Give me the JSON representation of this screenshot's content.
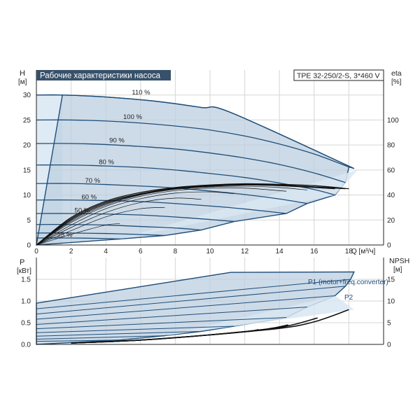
{
  "chart_data": [
    {
      "type": "line",
      "title": "Рабочие характеристики насоса",
      "model_label": "TPE 32-250/2-S, 3*460 V",
      "ylabel": "H",
      "yunit": "[м]",
      "y2label": "eta",
      "y2unit": "[%]",
      "xlabel": "Q [м³/ч]",
      "xlim": [
        0,
        20
      ],
      "ylim": [
        0,
        35
      ],
      "y2lim": [
        0,
        140
      ],
      "x_ticks": [
        0,
        2,
        4,
        6,
        8,
        10,
        12,
        14,
        16,
        18
      ],
      "y_ticks": [
        0,
        5,
        10,
        15,
        20,
        25,
        30
      ],
      "y2_ticks": [
        0,
        20,
        40,
        60,
        80,
        100
      ],
      "grid": true,
      "series": [
        {
          "name": "110 %",
          "x": [
            0,
            1.5,
            4,
            7,
            9.5,
            11.2,
            18.3
          ],
          "y": [
            30,
            30,
            29.6,
            28.7,
            27.5,
            26.5,
            15.3
          ]
        },
        {
          "name": "100 %",
          "x": [
            0,
            2,
            4,
            6,
            8,
            10,
            12,
            14,
            16,
            18
          ],
          "y": [
            25,
            25,
            24.8,
            24.4,
            23.8,
            23,
            21.8,
            20.2,
            18.2,
            15.6
          ]
        },
        {
          "name": "90 %",
          "x": [
            0,
            2,
            4,
            6,
            8,
            10,
            12,
            14,
            16,
            17.8
          ],
          "y": [
            20.3,
            20.3,
            20.1,
            19.7,
            19.2,
            18.4,
            17.4,
            16.1,
            14.4,
            12.5
          ]
        },
        {
          "name": "80 %",
          "x": [
            0,
            2,
            4,
            6,
            8,
            10,
            12,
            14,
            16,
            17.2
          ],
          "y": [
            16,
            16,
            15.8,
            15.5,
            15,
            14.3,
            13.5,
            12.4,
            11.1,
            10
          ]
        },
        {
          "name": "70 %",
          "x": [
            0,
            2,
            4,
            6,
            8,
            10,
            12,
            14,
            15.6
          ],
          "y": [
            12.3,
            12.3,
            12.1,
            11.8,
            11.4,
            10.8,
            10.1,
            9.2,
            8.3
          ]
        },
        {
          "name": "60 %",
          "x": [
            0,
            2,
            4,
            6,
            8,
            10,
            12,
            14.4
          ],
          "y": [
            9,
            9,
            8.9,
            8.7,
            8.3,
            7.8,
            7.2,
            6.3
          ]
        },
        {
          "name": "50 %",
          "x": [
            0,
            2,
            4,
            6,
            8,
            10,
            11.4
          ],
          "y": [
            6.3,
            6.3,
            6.2,
            6,
            5.6,
            5.1,
            4.7
          ]
        },
        {
          "name": "",
          "x": [
            0,
            2,
            4,
            6,
            8,
            9.5
          ],
          "y": [
            4.1,
            4.1,
            4,
            3.7,
            3.4,
            3
          ]
        },
        {
          "name": "",
          "x": [
            0,
            2,
            4,
            6,
            7.4
          ],
          "y": [
            2.4,
            2.4,
            2.3,
            2.1,
            1.9
          ]
        },
        {
          "name": "25 %",
          "x": [
            0,
            2,
            4,
            4.8
          ],
          "y": [
            1.4,
            1.4,
            1.3,
            1.2
          ]
        }
      ],
      "efficiency_series": [
        {
          "x": [
            0,
            2,
            4,
            6,
            8,
            10,
            12,
            14,
            16,
            18
          ],
          "y": [
            0,
            22,
            35,
            42,
            46,
            48,
            49,
            48.5,
            47.5,
            45
          ]
        },
        {
          "x": [
            0,
            2,
            4,
            6,
            8,
            10,
            12,
            14,
            16,
            17.8
          ],
          "y": [
            0,
            21,
            34,
            41,
            45.5,
            47.5,
            48.5,
            48,
            46.5,
            45
          ]
        },
        {
          "x": [
            0,
            2,
            4,
            6,
            8,
            10,
            12,
            14,
            16,
            17.2
          ],
          "y": [
            0,
            20,
            33,
            40.5,
            45,
            47,
            48,
            47.5,
            46,
            45
          ]
        },
        {
          "x": [
            0,
            2,
            4,
            6,
            8,
            10,
            12,
            14,
            15.6
          ],
          "y": [
            0,
            19,
            32,
            40,
            44.5,
            46.5,
            47,
            46,
            44
          ]
        },
        {
          "x": [
            0,
            2,
            4,
            6,
            8,
            10,
            12,
            14.4
          ],
          "y": [
            0,
            18,
            31,
            39,
            43.5,
            45.5,
            45.5,
            43
          ]
        },
        {
          "x": [
            0,
            2,
            4,
            6,
            8,
            10,
            11.4
          ],
          "y": [
            0,
            16,
            29,
            37,
            41.5,
            42.5,
            41
          ]
        },
        {
          "x": [
            0,
            2,
            4,
            6,
            8,
            9.5
          ],
          "y": [
            0,
            14,
            26,
            34,
            37.5,
            36.5
          ]
        },
        {
          "x": [
            0,
            2,
            4,
            6,
            7.4
          ],
          "y": [
            0,
            11.5,
            22.5,
            29,
            30
          ]
        },
        {
          "x": [
            0,
            2,
            4,
            4.8
          ],
          "y": [
            0,
            8.5,
            16,
            17
          ]
        }
      ]
    },
    {
      "type": "line",
      "ylabel": "P",
      "yunit": "[кВт]",
      "y2label": "NPSH",
      "y2unit": "[м]",
      "xlim": [
        0,
        20
      ],
      "ylim": [
        0,
        2
      ],
      "y2lim": [
        0,
        20
      ],
      "y_ticks": [
        0,
        0.5,
        1.0,
        1.5
      ],
      "y_tick_labels": [
        "0.0",
        "0.5",
        "1.0",
        "1.5"
      ],
      "y2_ticks": [
        0,
        5,
        10,
        15
      ],
      "grid": true,
      "annotations": [
        "P1 (motor+freq.converter)",
        "P2"
      ],
      "series": [
        {
          "name": "P1 (motor+freq.converter)",
          "x": [
            0,
            11.2,
            18.3
          ],
          "y": [
            0.95,
            1.66,
            1.67
          ]
        },
        {
          "name": "P2",
          "x": [
            0,
            18.1
          ],
          "y": [
            0.82,
            1.5
          ]
        },
        {
          "name": "",
          "x": [
            0,
            17.8
          ],
          "y": [
            0.7,
            1.34
          ]
        },
        {
          "name": "",
          "x": [
            0,
            17.2
          ],
          "y": [
            0.58,
            1.12
          ]
        },
        {
          "name": "",
          "x": [
            0,
            15.6
          ],
          "y": [
            0.46,
            0.86
          ]
        },
        {
          "name": "",
          "x": [
            0,
            14.4
          ],
          "y": [
            0.36,
            0.62
          ]
        },
        {
          "name": "",
          "x": [
            0,
            11.4
          ],
          "y": [
            0.27,
            0.42
          ]
        },
        {
          "name": "",
          "x": [
            0,
            9.5
          ],
          "y": [
            0.19,
            0.3
          ]
        },
        {
          "name": "",
          "x": [
            0,
            7.4
          ],
          "y": [
            0.12,
            0.2
          ]
        },
        {
          "name": "",
          "x": [
            0,
            4.8
          ],
          "y": [
            0.07,
            0.1
          ]
        }
      ],
      "npsh_series": [
        {
          "x": [
            2,
            6,
            10,
            14,
            16,
            18
          ],
          "y": [
            0.3,
            1,
            2.2,
            3.7,
            5.2,
            8
          ]
        },
        {
          "x": [
            2,
            6,
            10,
            14,
            16.2
          ],
          "y": [
            0.3,
            1,
            2.2,
            3.9,
            6.1
          ]
        },
        {
          "x": [
            2,
            6,
            10,
            13.2,
            14.5
          ],
          "y": [
            0.3,
            1,
            2.2,
            3.5,
            4.5
          ]
        },
        {
          "x": [
            2,
            6,
            10,
            12.2,
            12.8
          ],
          "y": [
            0.3,
            1,
            2.2,
            3,
            3.4
          ]
        }
      ]
    }
  ]
}
